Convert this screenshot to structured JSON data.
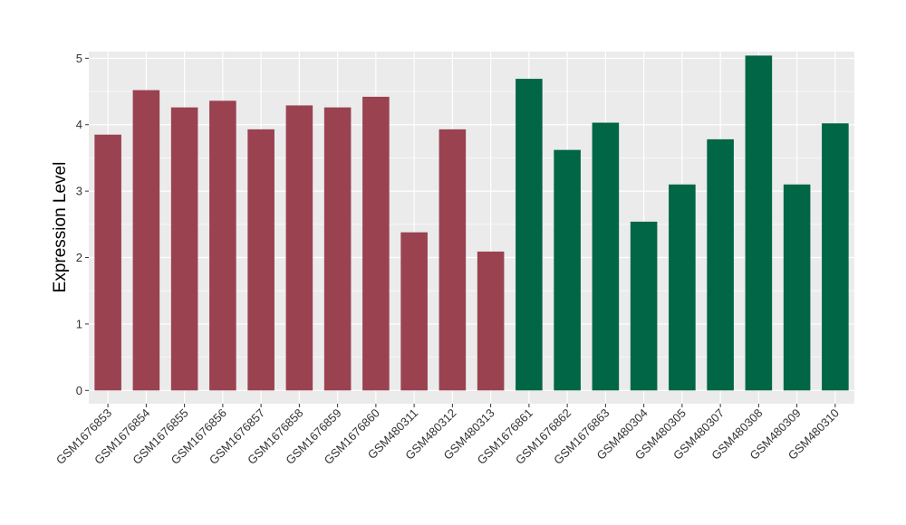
{
  "chart_data": {
    "type": "bar",
    "title": "",
    "xlabel": "",
    "ylabel": "Expression Level",
    "ylim": [
      -0.2,
      5.1
    ],
    "yticks": [
      0,
      1,
      2,
      3,
      4,
      5
    ],
    "grid": true,
    "legend": "none",
    "colors": {
      "group_a": "#9a4250",
      "group_b": "#006645",
      "panel": "#ebebeb",
      "grid": "#ffffff"
    },
    "categories": [
      "GSM1676853",
      "GSM1676854",
      "GSM1676855",
      "GSM1676856",
      "GSM1676857",
      "GSM1676858",
      "GSM1676859",
      "GSM1676860",
      "GSM480311",
      "GSM480312",
      "GSM480313",
      "GSM1676861",
      "GSM1676862",
      "GSM1676863",
      "GSM480304",
      "GSM480305",
      "GSM480307",
      "GSM480308",
      "GSM480309",
      "GSM480310"
    ],
    "values": [
      3.85,
      4.52,
      4.26,
      4.36,
      3.93,
      4.29,
      4.26,
      4.42,
      2.38,
      3.93,
      2.09,
      4.69,
      3.62,
      4.03,
      2.54,
      3.1,
      3.78,
      5.04,
      3.1,
      4.02
    ],
    "groups": [
      "a",
      "a",
      "a",
      "a",
      "a",
      "a",
      "a",
      "a",
      "a",
      "a",
      "a",
      "b",
      "b",
      "b",
      "b",
      "b",
      "b",
      "b",
      "b",
      "b"
    ]
  }
}
